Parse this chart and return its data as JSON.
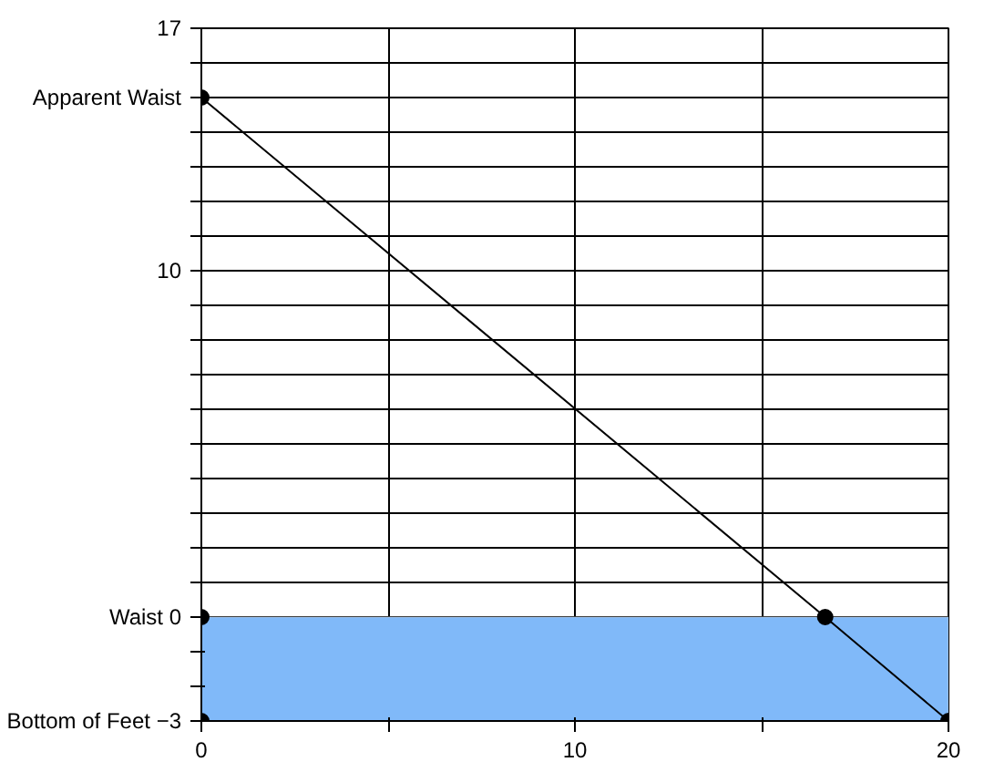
{
  "chart_data": {
    "type": "line",
    "xlim": [
      0,
      20
    ],
    "ylim": [
      -3,
      17
    ],
    "xticks": [
      0,
      {
        "value": 5,
        "label": null
      },
      10,
      {
        "value": 15,
        "label": null
      },
      20
    ],
    "yticks": [
      {
        "value": -3,
        "label": "Bottom of Feet −3"
      },
      {
        "value": -2,
        "label": null
      },
      {
        "value": -1,
        "label": null
      },
      {
        "value": 0,
        "label": "Waist 0"
      },
      {
        "value": 1,
        "label": null
      },
      {
        "value": 2,
        "label": null
      },
      {
        "value": 3,
        "label": null
      },
      {
        "value": 4,
        "label": null
      },
      {
        "value": 5,
        "label": null
      },
      {
        "value": 6,
        "label": null
      },
      {
        "value": 7,
        "label": null
      },
      {
        "value": 8,
        "label": null
      },
      {
        "value": 9,
        "label": null
      },
      10,
      {
        "value": 11,
        "label": null
      },
      {
        "value": 12,
        "label": null
      },
      {
        "value": 13,
        "label": null
      },
      {
        "value": 14,
        "label": null
      },
      {
        "value": 15,
        "label": "Apparent Waist"
      },
      {
        "value": 16,
        "label": null
      },
      17
    ],
    "grid": true,
    "marker": "circle",
    "bands": [
      {
        "axis": "y",
        "from": -3,
        "to": 0,
        "color": "#80b9f9"
      }
    ],
    "series": [
      {
        "color": "#000000",
        "x": [
          0,
          16.7,
          20
        ],
        "values": [
          15,
          0,
          -3
        ]
      },
      {
        "type": "scatter",
        "color": "#000000",
        "x": [
          0,
          0
        ],
        "values": [
          0,
          -3
        ]
      }
    ]
  }
}
